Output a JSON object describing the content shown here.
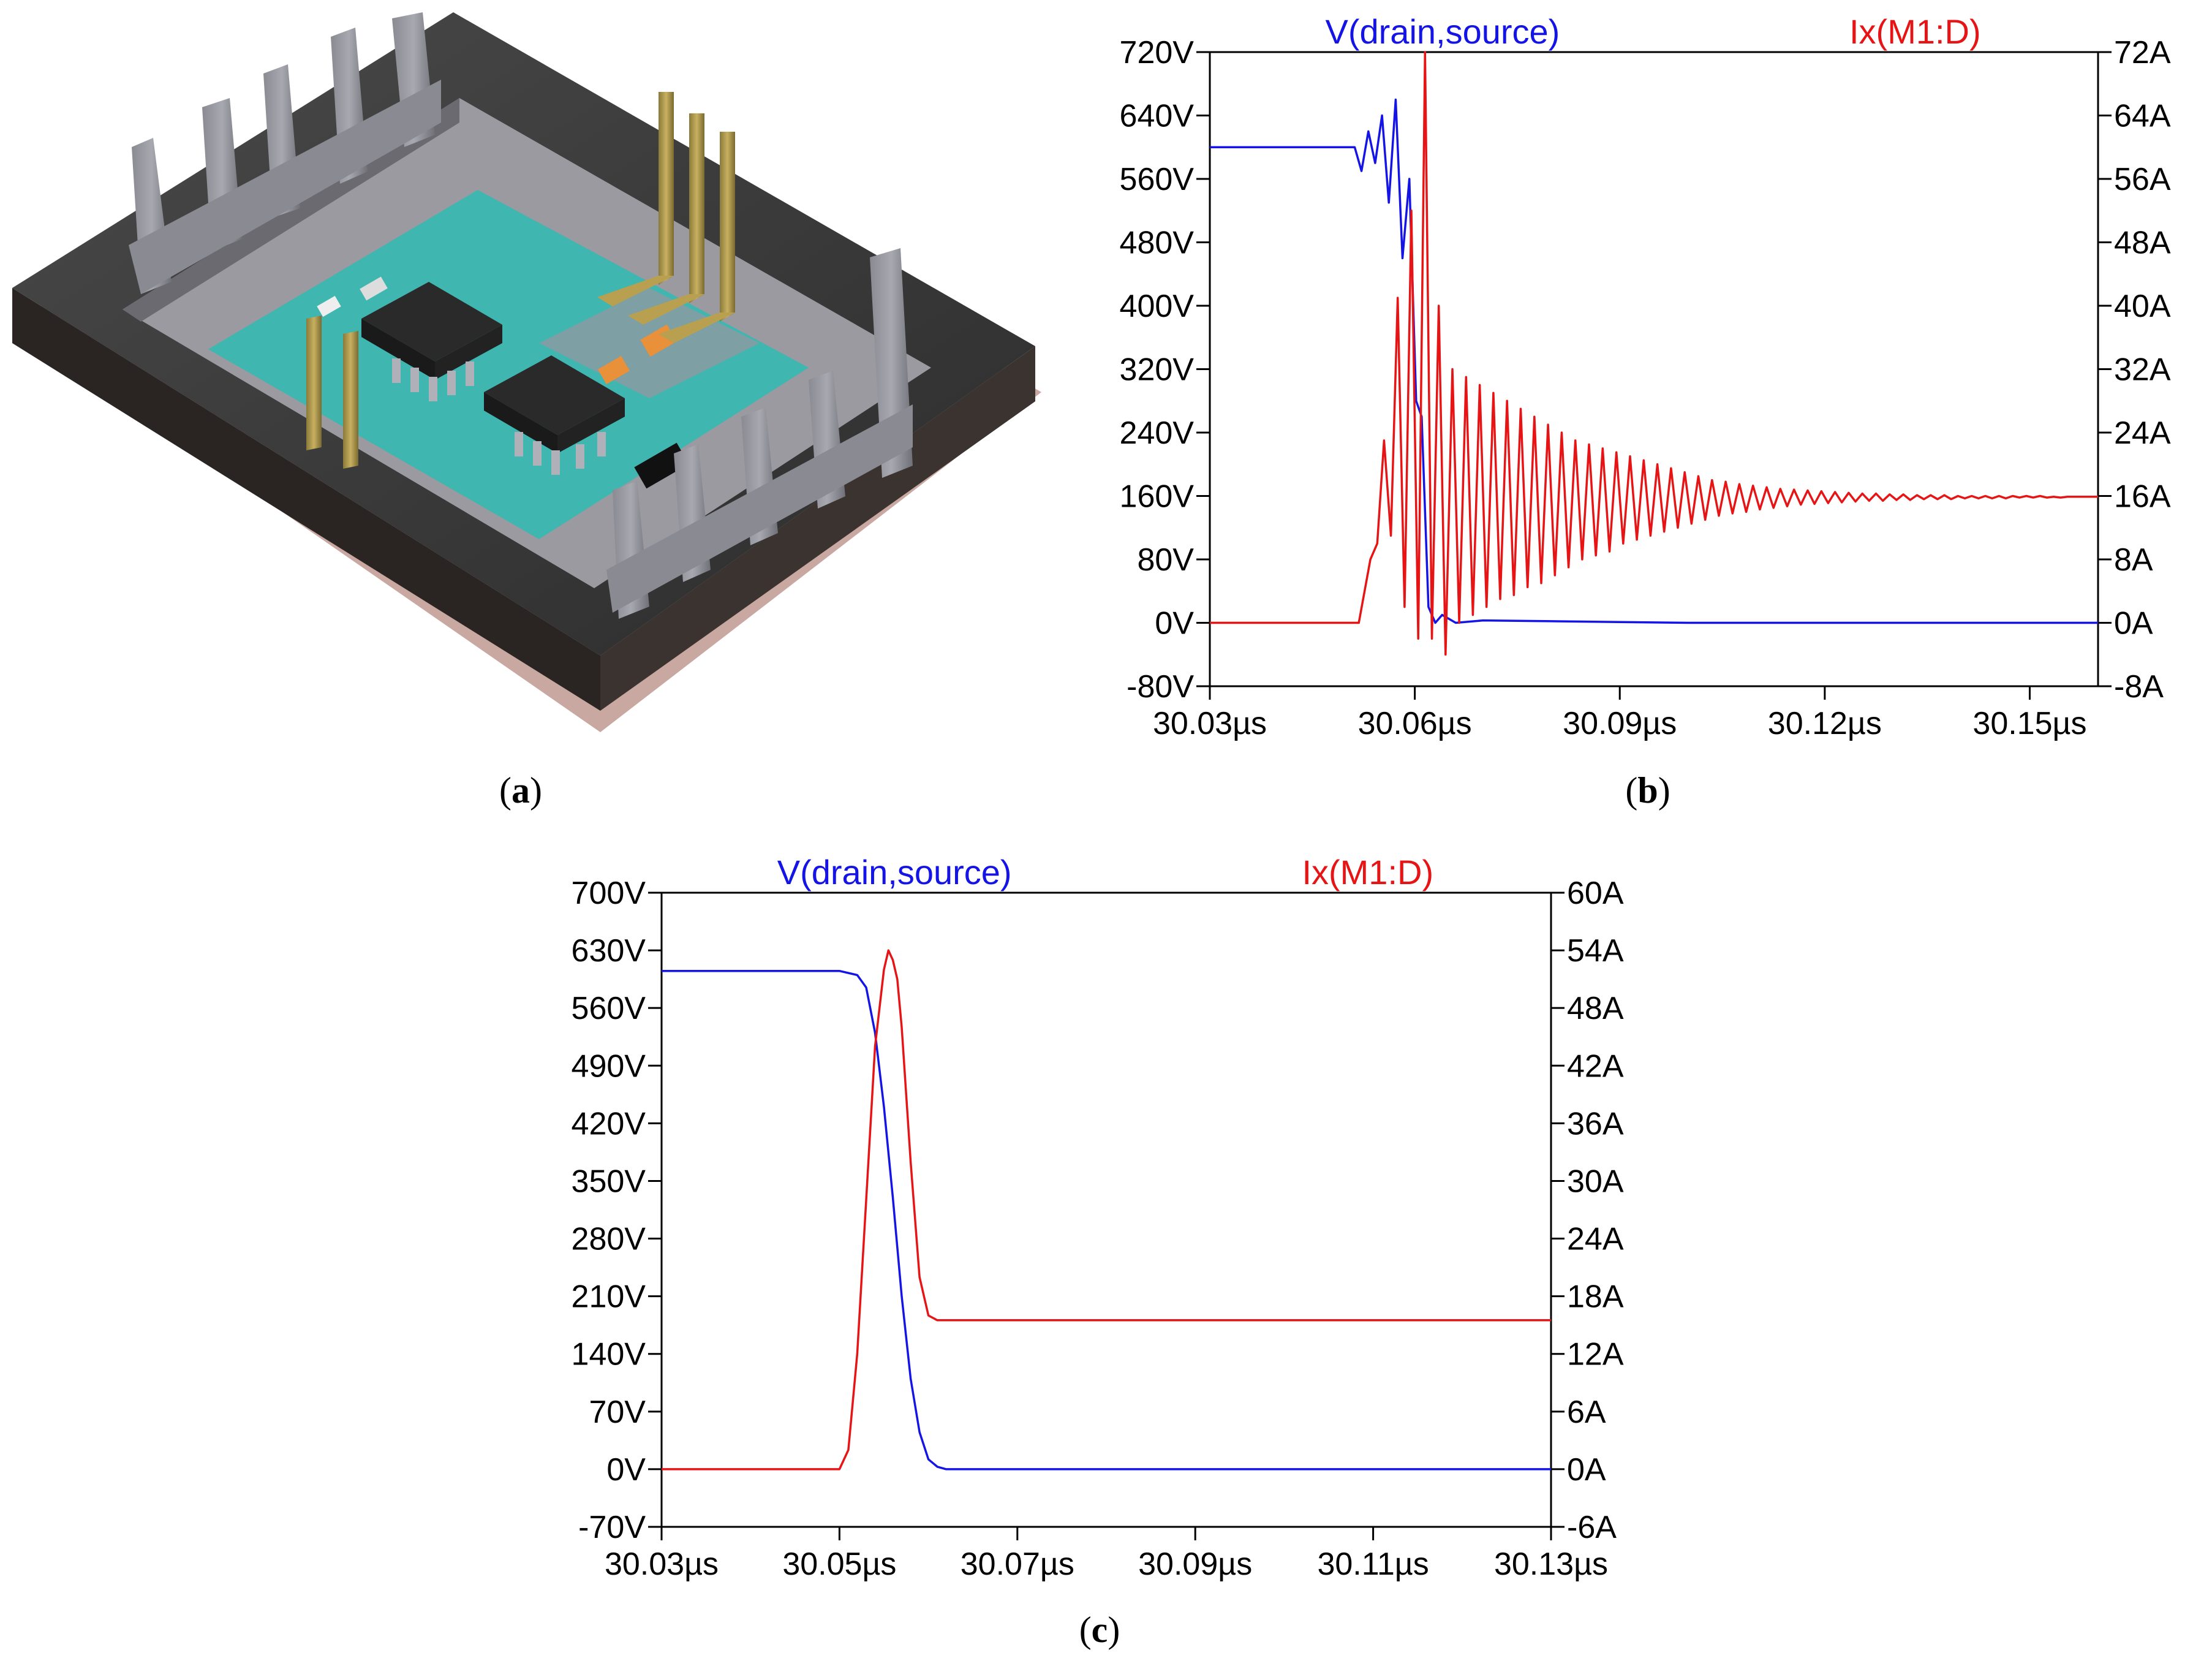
{
  "panel_a": {
    "caption": "a",
    "photo_description": "3D render of a power module package: dark housing with tall grey pin terminals, cyan substrate with two SO-8 ICs and small passive components, gold bent leads"
  },
  "colors": {
    "voltage_trace": "#1414e6",
    "current_trace": "#e61414",
    "axis": "#000000",
    "substrate": "#3fb6b0",
    "housing": "#3a3a3a"
  },
  "chart_data": [
    {
      "id": "b",
      "type": "line",
      "caption": "b",
      "title": "",
      "xlabel": "",
      "x_ticks": [
        "30.03µs",
        "30.06µs",
        "30.09µs",
        "30.12µs",
        "30.15µs"
      ],
      "x_tick_values": [
        30.03,
        30.06,
        30.09,
        30.12,
        30.15
      ],
      "xlim": [
        30.03,
        30.16
      ],
      "y_left_ticks": [
        "720V",
        "640V",
        "560V",
        "480V",
        "400V",
        "320V",
        "240V",
        "160V",
        "80V",
        "0V",
        "-80V"
      ],
      "y_left_lim": [
        -80,
        720
      ],
      "y_right_ticks": [
        "72A",
        "64A",
        "56A",
        "48A",
        "40A",
        "32A",
        "24A",
        "16A",
        "8A",
        "0A",
        "-8A"
      ],
      "y_right_lim": [
        -8,
        72
      ],
      "grid": false,
      "legend": "top (series names above plot)",
      "series": [
        {
          "name": "V(drain,source)",
          "axis": "left",
          "color": "#1414e6",
          "x": [
            30.03,
            30.05,
            30.051,
            30.0512,
            30.0522,
            30.0532,
            30.0542,
            30.0552,
            30.0562,
            30.0572,
            30.0582,
            30.0592,
            30.0602,
            30.061,
            30.062,
            30.063,
            30.064,
            30.066,
            30.07,
            30.08,
            30.09,
            30.1,
            30.12,
            30.16
          ],
          "y": [
            600,
            600,
            600,
            600,
            570,
            620,
            580,
            640,
            530,
            660,
            460,
            560,
            280,
            260,
            20,
            0,
            10,
            0,
            3,
            2,
            1,
            0,
            0,
            0
          ]
        },
        {
          "name": "Ix(M1:D)",
          "axis": "right",
          "color": "#e61414",
          "x": [
            30.03,
            30.0518,
            30.0535,
            30.0545,
            30.0555,
            30.0565,
            30.0575,
            30.0585,
            30.0595,
            30.0605,
            30.0615,
            30.0625,
            30.0635,
            30.0645,
            30.0655,
            30.0665,
            30.0675,
            30.0685,
            30.0695,
            30.0705,
            30.0715,
            30.0725,
            30.0735,
            30.0745,
            30.0755,
            30.0765,
            30.0775,
            30.0785,
            30.0795,
            30.0805,
            30.0815,
            30.0825,
            30.0835,
            30.0845,
            30.0855,
            30.0865,
            30.0875,
            30.0885,
            30.0895,
            30.0905,
            30.0915,
            30.0925,
            30.0935,
            30.0945,
            30.0955,
            30.0965,
            30.0975,
            30.0985,
            30.0995,
            30.1005,
            30.1015,
            30.1025,
            30.1035,
            30.1045,
            30.1055,
            30.1065,
            30.1075,
            30.1085,
            30.1095,
            30.1105,
            30.1115,
            30.1125,
            30.1135,
            30.1145,
            30.1155,
            30.1165,
            30.1175,
            30.1185,
            30.1195,
            30.1205,
            30.1215,
            30.1225,
            30.1235,
            30.1245,
            30.1255,
            30.1265,
            30.1275,
            30.1285,
            30.1295,
            30.1305,
            30.1315,
            30.1325,
            30.1335,
            30.1345,
            30.1355,
            30.1365,
            30.1375,
            30.1385,
            30.1395,
            30.1405,
            30.1415,
            30.1425,
            30.1435,
            30.1445,
            30.1455,
            30.1465,
            30.1475,
            30.1485,
            30.1495,
            30.1505,
            30.1515,
            30.1525,
            30.1535,
            30.1545,
            30.1555,
            30.16
          ],
          "y": [
            0,
            0,
            8,
            10,
            23,
            11,
            41,
            2,
            52,
            -2,
            72,
            -2,
            40,
            -4,
            32,
            0,
            31,
            1,
            30,
            2,
            29,
            3,
            28,
            3.5,
            27,
            4.5,
            26,
            5,
            25,
            6,
            24,
            7,
            23,
            8,
            22.5,
            8.5,
            22,
            9,
            21.5,
            10,
            21,
            10.5,
            20.5,
            11,
            20,
            11.5,
            19.5,
            12,
            19,
            12.5,
            18.5,
            13,
            18,
            13.5,
            17.8,
            13.8,
            17.5,
            14,
            17.3,
            14.3,
            17.1,
            14.5,
            16.9,
            14.7,
            16.8,
            14.9,
            16.7,
            15.0,
            16.6,
            15.1,
            16.5,
            15.2,
            16.4,
            15.3,
            16.3,
            15.4,
            16.3,
            15.4,
            16.2,
            15.5,
            16.2,
            15.5,
            16.1,
            15.6,
            16.1,
            15.6,
            16.1,
            15.6,
            16.0,
            15.7,
            16.0,
            15.7,
            16.0,
            15.7,
            16.0,
            15.7,
            16.0,
            15.8,
            16.0,
            15.8,
            16.0,
            15.8,
            15.9,
            15.8,
            15.9,
            15.9
          ]
        }
      ]
    },
    {
      "id": "c",
      "type": "line",
      "caption": "c",
      "title": "",
      "xlabel": "",
      "x_ticks": [
        "30.03µs",
        "30.05µs",
        "30.07µs",
        "30.09µs",
        "30.11µs",
        "30.13µs"
      ],
      "x_tick_values": [
        30.03,
        30.05,
        30.07,
        30.09,
        30.11,
        30.13
      ],
      "xlim": [
        30.03,
        30.13
      ],
      "y_left_ticks": [
        "700V",
        "630V",
        "560V",
        "490V",
        "420V",
        "350V",
        "280V",
        "210V",
        "140V",
        "70V",
        "0V",
        "-70V"
      ],
      "y_left_lim": [
        -70,
        700
      ],
      "y_right_ticks": [
        "60A",
        "54A",
        "48A",
        "42A",
        "36A",
        "30A",
        "24A",
        "18A",
        "12A",
        "6A",
        "0A",
        "-6A"
      ],
      "y_right_lim": [
        -6,
        60
      ],
      "grid": false,
      "legend": "top (series names above plot)",
      "series": [
        {
          "name": "V(drain,source)",
          "axis": "left",
          "color": "#1414e6",
          "x": [
            30.03,
            30.05,
            30.052,
            30.053,
            30.054,
            30.055,
            30.056,
            30.057,
            30.058,
            30.059,
            30.06,
            30.061,
            30.062,
            30.07,
            30.09,
            30.13
          ],
          "y": [
            605,
            605,
            600,
            585,
            530,
            440,
            330,
            210,
            110,
            45,
            12,
            3,
            0,
            0,
            0,
            0
          ]
        },
        {
          "name": "Ix(M1:D)",
          "axis": "right",
          "color": "#e61414",
          "x": [
            30.03,
            30.05,
            30.051,
            30.052,
            30.053,
            30.054,
            30.055,
            30.0555,
            30.056,
            30.0565,
            30.057,
            30.058,
            30.059,
            30.06,
            30.061,
            30.065,
            30.07,
            30.09,
            30.11,
            30.13
          ],
          "y": [
            0,
            0,
            2,
            12,
            28,
            44,
            52,
            54,
            53,
            51,
            46,
            32,
            20,
            16,
            15.5,
            15.5,
            15.5,
            15.5,
            15.5,
            15.5
          ]
        }
      ]
    }
  ]
}
